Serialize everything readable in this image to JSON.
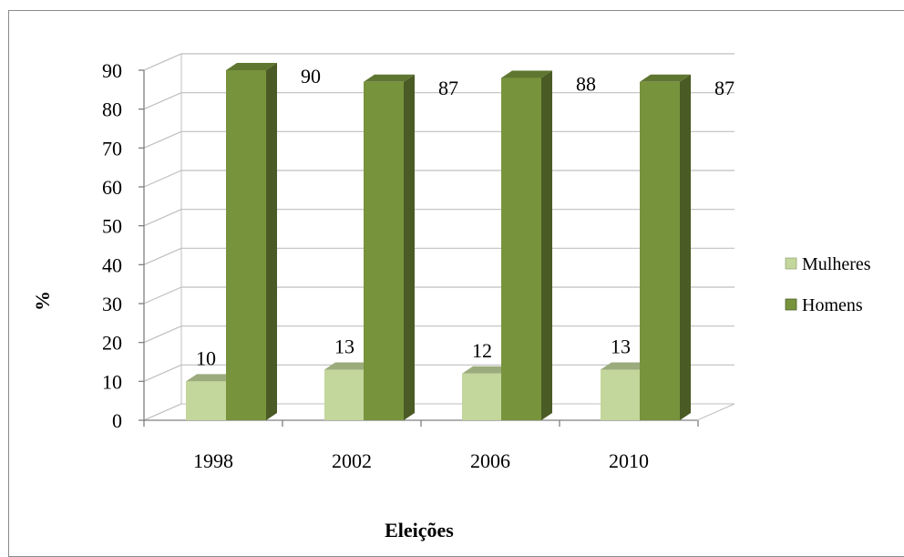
{
  "chart_data": {
    "type": "bar",
    "categories": [
      "1998",
      "2002",
      "2006",
      "2010"
    ],
    "series": [
      {
        "name": "Mulheres",
        "values": [
          10,
          13,
          12,
          13
        ],
        "color": "#c3d69b"
      },
      {
        "name": "Homens",
        "values": [
          90,
          87,
          88,
          87
        ],
        "color": "#77933c"
      }
    ],
    "title": "",
    "xlabel": "Eleições",
    "ylabel": "%",
    "ylim": [
      0,
      90
    ],
    "yticks": [
      0,
      10,
      20,
      30,
      40,
      50,
      60,
      70,
      80,
      90
    ],
    "data_labels": true,
    "grid": true,
    "style": "3d-column",
    "legend_position": "right"
  }
}
